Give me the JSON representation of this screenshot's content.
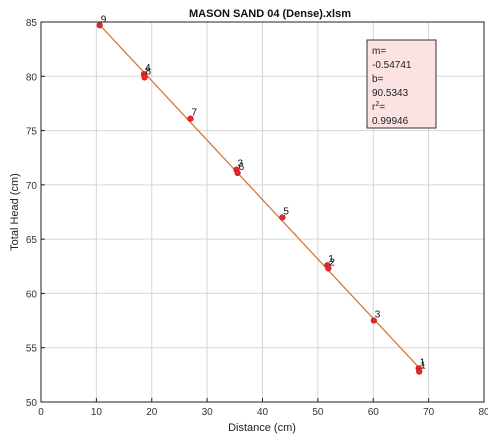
{
  "chart_data": {
    "type": "scatter",
    "title": "MASON SAND 04 (Dense).xlsm",
    "xlabel": "Distance (cm)",
    "ylabel": "Total Head (cm)",
    "xlim": [
      0,
      80
    ],
    "ylim": [
      50,
      85
    ],
    "xticks": [
      0,
      10,
      20,
      30,
      40,
      50,
      60,
      70,
      80
    ],
    "yticks": [
      50,
      55,
      60,
      65,
      70,
      75,
      80,
      85
    ],
    "grid": true,
    "points": [
      {
        "label": "9",
        "x": 10.6,
        "y": 84.7
      },
      {
        "label": "4",
        "x": 18.6,
        "y": 80.2
      },
      {
        "label": "8",
        "x": 18.7,
        "y": 79.9
      },
      {
        "label": "7",
        "x": 27.0,
        "y": 76.1
      },
      {
        "label": "3",
        "x": 35.3,
        "y": 71.4
      },
      {
        "label": "6",
        "x": 35.5,
        "y": 71.1
      },
      {
        "label": "5",
        "x": 43.6,
        "y": 67.0
      },
      {
        "label": "1",
        "x": 51.7,
        "y": 62.6
      },
      {
        "label": "2",
        "x": 51.9,
        "y": 62.3
      },
      {
        "label": "3",
        "x": 60.1,
        "y": 57.5
      },
      {
        "label": "1",
        "x": 68.2,
        "y": 53.1
      },
      {
        "label": "1",
        "x": 68.3,
        "y": 52.8
      }
    ],
    "fit_line": {
      "x": [
        10.6,
        68.5
      ],
      "slope": -0.54741,
      "intercept": 90.5343
    },
    "colors": {
      "points": "#e8262b",
      "line": "#d4773a",
      "box_fill": "#fbe3e3"
    },
    "stats_box": {
      "m_label": "m=",
      "m_value": "-0.54741",
      "b_label": "b=",
      "b_value": "90.5343",
      "r2_label": "r",
      "r2_sup": "2",
      "r2_eq": "=",
      "r2_value": "0.99946"
    }
  }
}
